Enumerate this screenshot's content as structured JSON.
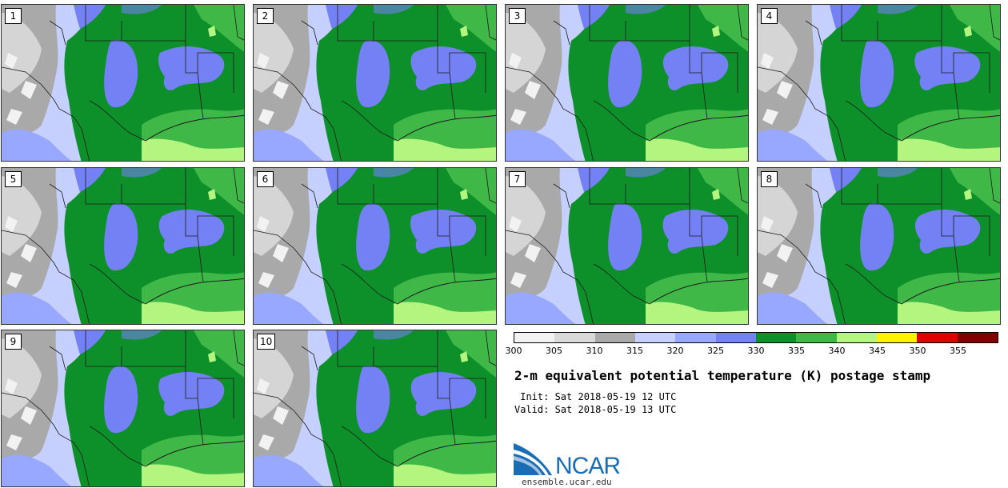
{
  "panels": [
    {
      "member": "1"
    },
    {
      "member": "2"
    },
    {
      "member": "3"
    },
    {
      "member": "4"
    },
    {
      "member": "5"
    },
    {
      "member": "6"
    },
    {
      "member": "7"
    },
    {
      "member": "8"
    },
    {
      "member": "9"
    },
    {
      "member": "10"
    }
  ],
  "colorbar": {
    "colors": [
      "#f2f2f2",
      "#d9d9d9",
      "#a9a9a9",
      "#c5d0ff",
      "#98a8ff",
      "#7381f4",
      "#0d8f2a",
      "#3fb848",
      "#b3f57e",
      "#fff200",
      "#e00000",
      "#820000"
    ],
    "ticks": [
      "300",
      "305",
      "310",
      "315",
      "320",
      "325",
      "330",
      "335",
      "340",
      "345",
      "350",
      "355"
    ]
  },
  "title": "2-m equivalent potential temperature (K) postage stamp",
  "init_line": " Init: Sat 2018-05-19 12 UTC",
  "valid_line": "Valid: Sat 2018-05-19 13 UTC",
  "logo": {
    "text": "NCAR",
    "url": "ensemble.ucar.edu"
  }
}
